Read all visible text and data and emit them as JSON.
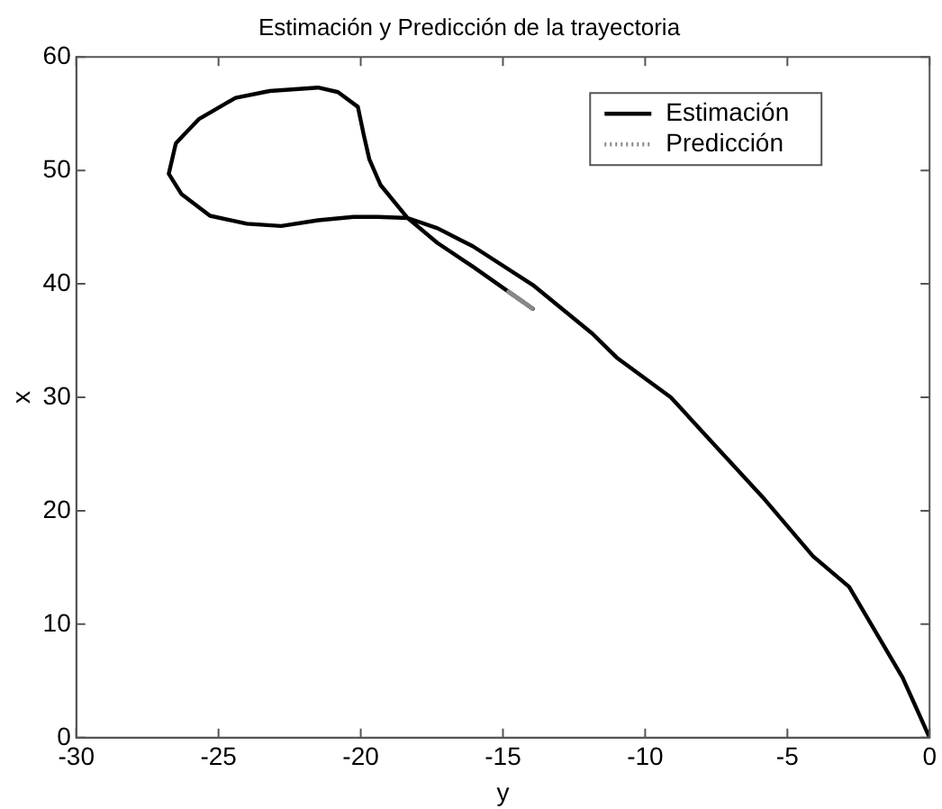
{
  "chart_data": {
    "type": "line",
    "title": "Estimación y Predicción de la trayectoria",
    "xlabel": "y",
    "ylabel": "x",
    "xlim": [
      -30,
      0
    ],
    "xticks": [
      -30,
      -25,
      -20,
      -15,
      -10,
      -5,
      0
    ],
    "ylim": [
      0,
      60
    ],
    "yticks": [
      0,
      10,
      20,
      30,
      40,
      50,
      60
    ],
    "grid": false,
    "legend": "top right",
    "marker": "none",
    "series": [
      {
        "name": "Estimación",
        "color": "#000000",
        "line_style": "solid",
        "x": [
          0,
          -0.95,
          -2.83,
          -4.1,
          -5.8,
          -7.45,
          -9.1,
          -11.0,
          -11.85,
          -13.95,
          -16.05,
          -17.3,
          -18.35,
          -19.4,
          -20.25,
          -21.5,
          -22.8,
          -24.0,
          -25.3,
          -26.3,
          -26.75,
          -26.5,
          -25.7,
          -24.4,
          -23.2,
          -21.5,
          -20.8,
          -20.1,
          -19.9,
          -19.7,
          -19.3,
          -18.35,
          -17.3,
          -16.05,
          -14.8,
          -13.95
        ],
        "values": [
          0,
          5.3,
          13.3,
          16,
          21,
          25.5,
          30,
          33.5,
          35.6,
          39.9,
          43.3,
          44.9,
          45.8,
          45.9,
          45.9,
          45.6,
          45.1,
          45.3,
          46.0,
          47.9,
          49.7,
          52.4,
          54.5,
          56.4,
          57.0,
          57.3,
          56.9,
          55.6,
          53.2,
          51.0,
          48.7,
          45.8,
          43.6,
          41.5,
          39.3,
          37.8
        ]
      },
      {
        "name": "Predicción",
        "color": "#888888",
        "line_style": "dotted",
        "x": [
          -14.8,
          -13.95
        ],
        "values": [
          39.3,
          37.8
        ]
      }
    ]
  }
}
